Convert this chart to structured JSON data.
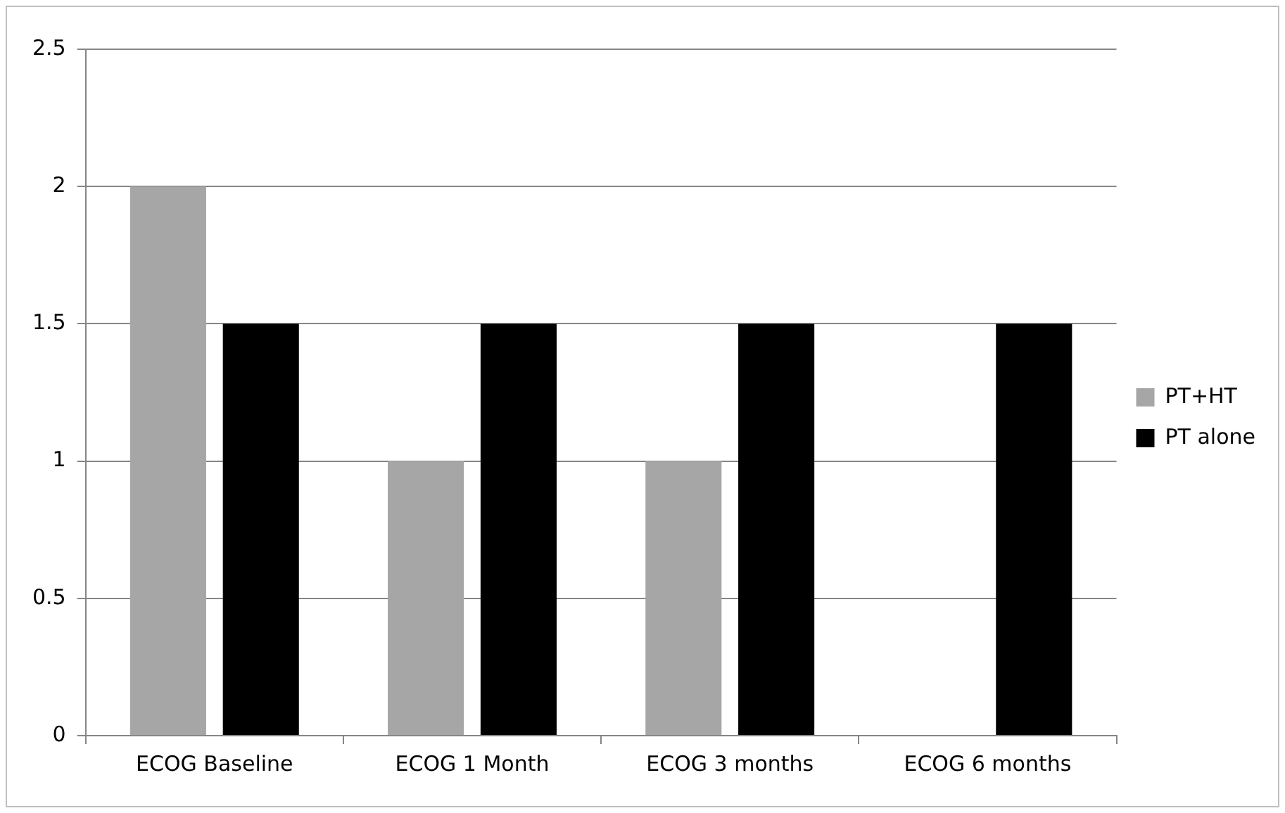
{
  "chart_data": {
    "type": "bar",
    "categories": [
      "ECOG Baseline",
      "ECOG 1 Month",
      "ECOG 3 months",
      "ECOG 6 months"
    ],
    "series": [
      {
        "name": "PT+HT",
        "color": "#a6a6a6",
        "values": [
          2,
          1,
          1,
          0
        ]
      },
      {
        "name": "PT alone",
        "color": "#000000",
        "values": [
          1.5,
          1.5,
          1.5,
          1.5
        ]
      }
    ],
    "ylim": [
      0,
      2.5
    ],
    "yticks": [
      0,
      0.5,
      1,
      1.5,
      2,
      2.5
    ],
    "grid": "y",
    "legend": "right"
  }
}
